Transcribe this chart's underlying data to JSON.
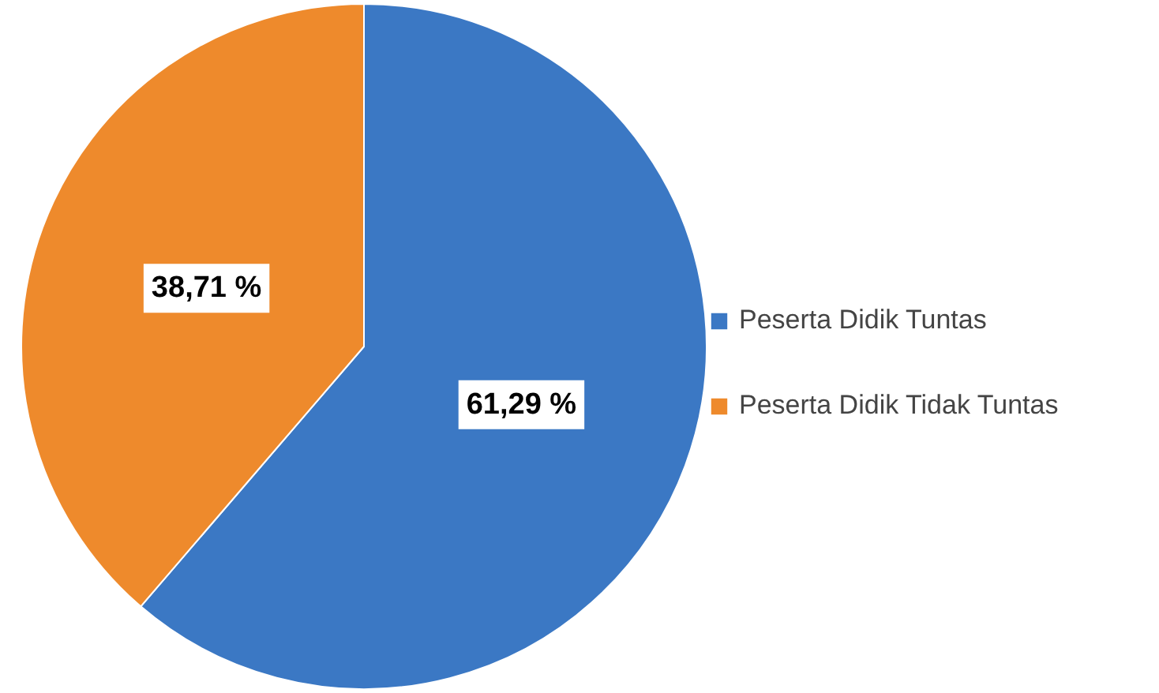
{
  "chart_data": {
    "type": "pie",
    "categories": [
      "Peserta Didik Tuntas",
      "Peserta Didik Tidak Tuntas"
    ],
    "values": [
      61.29,
      38.71
    ],
    "colors": [
      "#3b78c4",
      "#ee8a2c"
    ],
    "value_labels": [
      "61,29 %",
      "38,71 %"
    ],
    "legend": "right"
  }
}
